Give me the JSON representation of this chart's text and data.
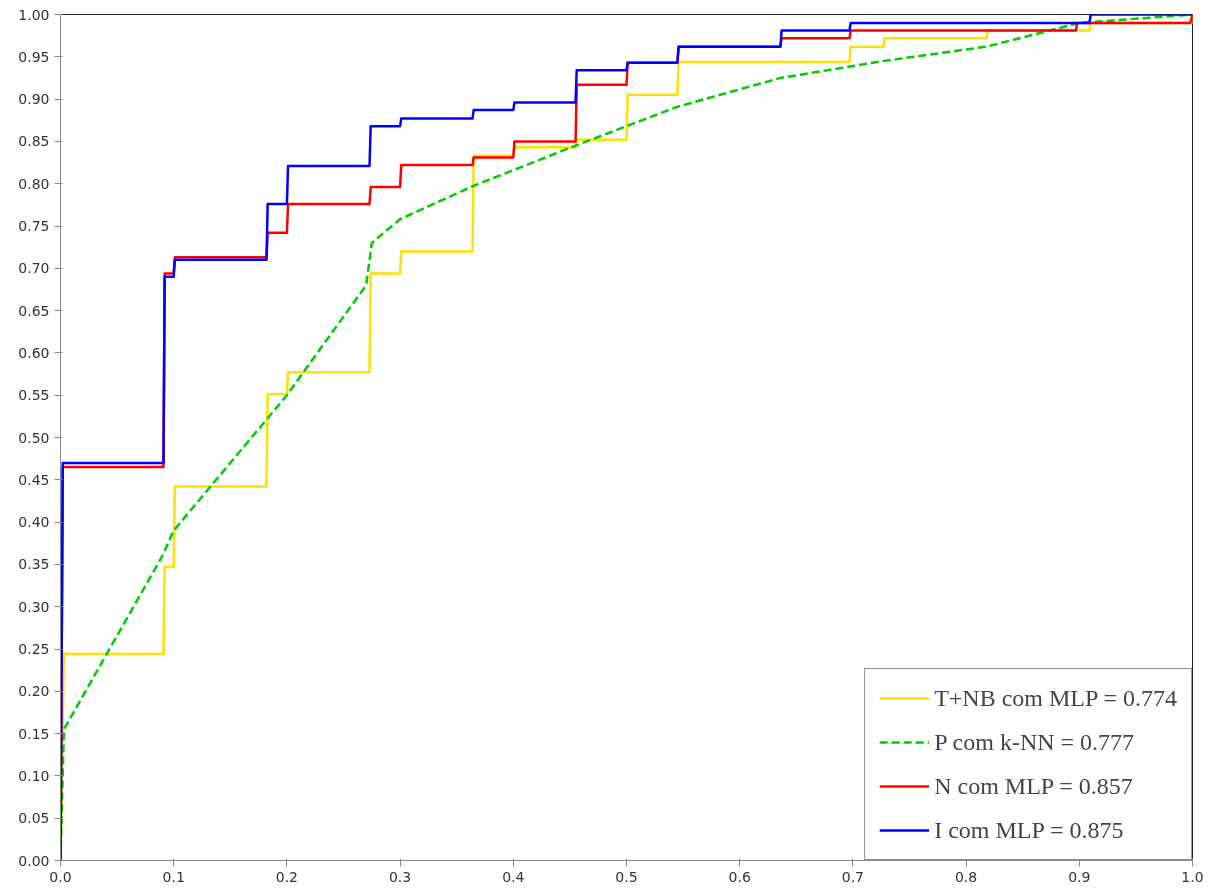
{
  "chart_data": {
    "type": "line",
    "xlim": [
      0,
      1
    ],
    "ylim": [
      0,
      1
    ],
    "xticks": [
      {
        "value": 0,
        "label": "0.0"
      },
      {
        "value": 0.1,
        "label": "0.1"
      },
      {
        "value": 0.2,
        "label": "0.2"
      },
      {
        "value": 0.3,
        "label": "0.3"
      },
      {
        "value": 0.4,
        "label": "0.4"
      },
      {
        "value": 0.5,
        "label": "0.5"
      },
      {
        "value": 0.6,
        "label": "0.6"
      },
      {
        "value": 0.7,
        "label": "0.7"
      },
      {
        "value": 0.8,
        "label": "0.8"
      },
      {
        "value": 0.9,
        "label": "0.9"
      },
      {
        "value": 1,
        "label": "1.0"
      }
    ],
    "yticks": [
      {
        "value": 0,
        "label": "0.00"
      },
      {
        "value": 0.05,
        "label": "0.05"
      },
      {
        "value": 0.1,
        "label": "0.10"
      },
      {
        "value": 0.15,
        "label": "0.15"
      },
      {
        "value": 0.2,
        "label": "0.20"
      },
      {
        "value": 0.25,
        "label": "0.25"
      },
      {
        "value": 0.3,
        "label": "0.30"
      },
      {
        "value": 0.35,
        "label": "0.35"
      },
      {
        "value": 0.4,
        "label": "0.40"
      },
      {
        "value": 0.45,
        "label": "0.45"
      },
      {
        "value": 0.5,
        "label": "0.50"
      },
      {
        "value": 0.55,
        "label": "0.55"
      },
      {
        "value": 0.6,
        "label": "0.60"
      },
      {
        "value": 0.65,
        "label": "0.65"
      },
      {
        "value": 0.7,
        "label": "0.70"
      },
      {
        "value": 0.75,
        "label": "0.75"
      },
      {
        "value": 0.8,
        "label": "0.80"
      },
      {
        "value": 0.85,
        "label": "0.85"
      },
      {
        "value": 0.9,
        "label": "0.90"
      },
      {
        "value": 0.95,
        "label": "0.95"
      },
      {
        "value": 1,
        "label": "1.00"
      }
    ],
    "grid": false,
    "legend": "bottom right",
    "marker": "none",
    "series": [
      {
        "name": "T+NB com MLP = 0.774",
        "color": "#ffe000",
        "line_style": "solid",
        "x": [
          0,
          0.003,
          0.091,
          0.092,
          0.1,
          0.101,
          0.182,
          0.183,
          0.2,
          0.201,
          0.273,
          0.274,
          0.3,
          0.301,
          0.364,
          0.365,
          0.4,
          0.401,
          0.455,
          0.456,
          0.5,
          0.501,
          0.545,
          0.546,
          0.697,
          0.698,
          0.727,
          0.728,
          0.818,
          0.819,
          0.909,
          0.91,
          1,
          1
        ],
        "values": [
          0,
          0.244,
          0.244,
          0.347,
          0.347,
          0.442,
          0.442,
          0.551,
          0.551,
          0.577,
          0.577,
          0.694,
          0.694,
          0.72,
          0.72,
          0.833,
          0.833,
          0.843,
          0.843,
          0.852,
          0.852,
          0.905,
          0.905,
          0.944,
          0.944,
          0.962,
          0.962,
          0.972,
          0.972,
          0.981,
          0.981,
          0.99,
          0.99,
          1
        ]
      },
      {
        "name": "P com k-NN = 0.777",
        "color": "#00cc00",
        "line_style": "dashed",
        "x": [
          0,
          0.003,
          0.09,
          0.1,
          0.2,
          0.27,
          0.275,
          0.3,
          0.364,
          0.455,
          0.545,
          0.636,
          0.727,
          0.818,
          0.9,
          1
        ],
        "values": [
          0,
          0.155,
          0.36,
          0.39,
          0.55,
          0.68,
          0.73,
          0.758,
          0.797,
          0.845,
          0.891,
          0.925,
          0.945,
          0.962,
          0.99,
          1
        ]
      },
      {
        "name": "N com MLP = 0.857",
        "color": "#ff0000",
        "line_style": "solid",
        "x": [
          0,
          0.002,
          0.091,
          0.092,
          0.1,
          0.101,
          0.182,
          0.183,
          0.2,
          0.201,
          0.273,
          0.274,
          0.3,
          0.301,
          0.364,
          0.365,
          0.4,
          0.401,
          0.455,
          0.456,
          0.5,
          0.501,
          0.545,
          0.546,
          0.636,
          0.637,
          0.697,
          0.698,
          0.897,
          0.898,
          0.998,
          1
        ],
        "values": [
          0,
          0.465,
          0.465,
          0.694,
          0.694,
          0.713,
          0.713,
          0.742,
          0.742,
          0.776,
          0.776,
          0.796,
          0.796,
          0.822,
          0.822,
          0.831,
          0.831,
          0.85,
          0.85,
          0.917,
          0.917,
          0.943,
          0.943,
          0.962,
          0.962,
          0.972,
          0.972,
          0.981,
          0.981,
          0.99,
          0.99,
          1
        ]
      },
      {
        "name": "I com MLP = 0.875",
        "color": "#0000ff",
        "line_style": "solid",
        "x": [
          0,
          0.002,
          0.091,
          0.092,
          0.1,
          0.101,
          0.182,
          0.183,
          0.2,
          0.201,
          0.273,
          0.274,
          0.3,
          0.301,
          0.364,
          0.365,
          0.4,
          0.401,
          0.455,
          0.456,
          0.5,
          0.501,
          0.545,
          0.546,
          0.636,
          0.637,
          0.697,
          0.698,
          0.909,
          0.91,
          1
        ],
        "values": [
          0,
          0.47,
          0.47,
          0.69,
          0.69,
          0.71,
          0.71,
          0.776,
          0.776,
          0.821,
          0.821,
          0.868,
          0.868,
          0.877,
          0.877,
          0.887,
          0.887,
          0.896,
          0.896,
          0.934,
          0.934,
          0.943,
          0.943,
          0.962,
          0.962,
          0.981,
          0.981,
          0.99,
          0.99,
          1,
          1
        ]
      }
    ]
  }
}
